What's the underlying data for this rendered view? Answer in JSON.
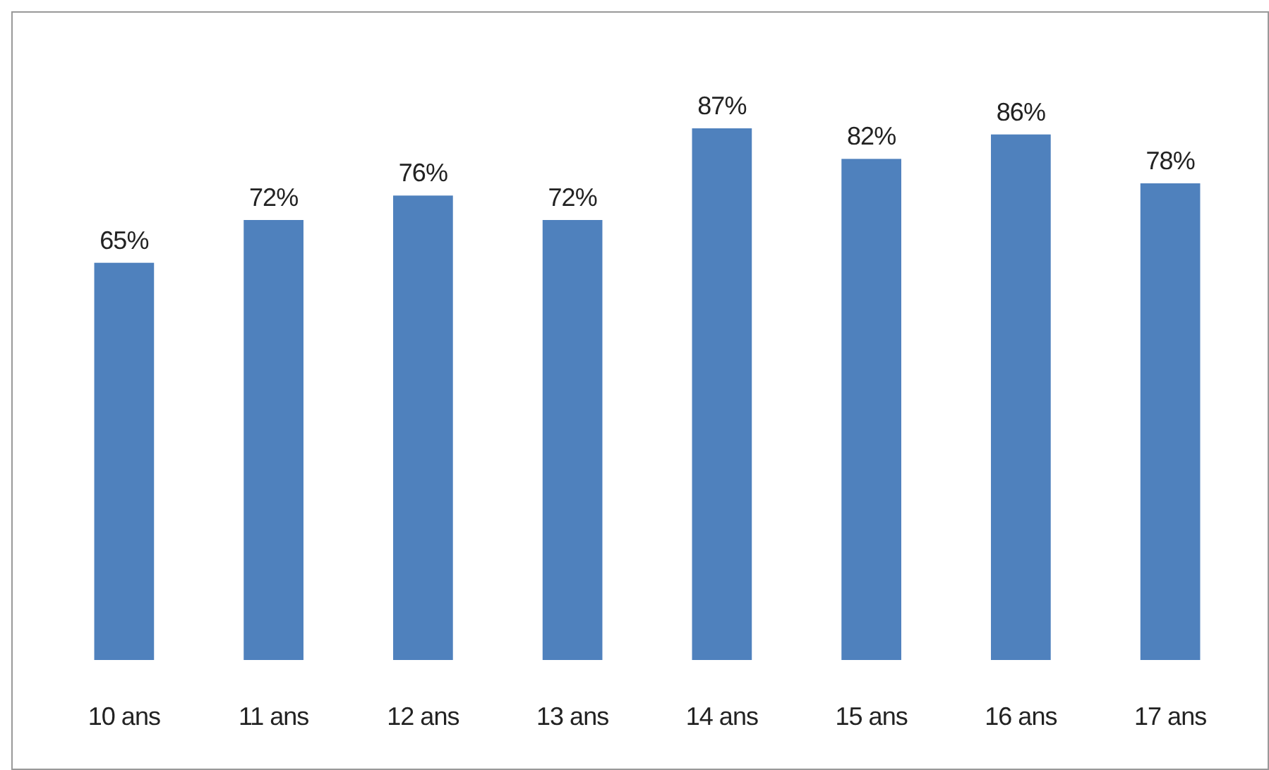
{
  "chart_data": {
    "type": "bar",
    "categories": [
      "10 ans",
      "11 ans",
      "12 ans",
      "13 ans",
      "14 ans",
      "15 ans",
      "16 ans",
      "17 ans"
    ],
    "values": [
      65,
      72,
      76,
      72,
      87,
      82,
      86,
      78
    ],
    "value_labels": [
      "65%",
      "72%",
      "76%",
      "72%",
      "87%",
      "82%",
      "86%",
      "78%"
    ],
    "color": "#4f81bd"
  }
}
